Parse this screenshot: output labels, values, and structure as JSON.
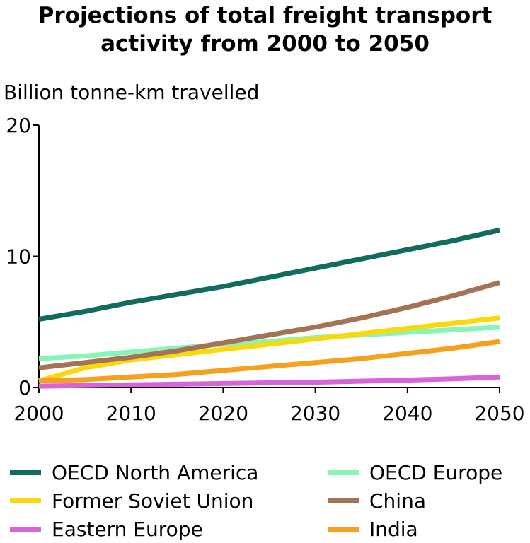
{
  "title_line1": "Projections of total freight transport",
  "title_line2": "activity from 2000 to 2050",
  "chart_data": {
    "type": "line",
    "title": "Projections of total freight transport activity from 2000 to 2050",
    "ylabel": "Billion tonne-km travelled",
    "xlabel": "",
    "xlim": [
      2000,
      2050
    ],
    "ylim": [
      0,
      20
    ],
    "x_ticks": [
      2000,
      2010,
      2020,
      2030,
      2040,
      2050
    ],
    "y_ticks": [
      0,
      10,
      20
    ],
    "grid": false,
    "legend_placement": "bottom",
    "x": [
      2000,
      2005,
      2010,
      2015,
      2020,
      2025,
      2030,
      2035,
      2040,
      2045,
      2050
    ],
    "series": [
      {
        "name": "OECD North America",
        "color": "#116b5e",
        "values": [
          5.2,
          5.8,
          6.5,
          7.1,
          7.7,
          8.4,
          9.1,
          9.8,
          10.5,
          11.2,
          12.0
        ]
      },
      {
        "name": "OECD Europe",
        "color": "#87f5b8",
        "values": [
          2.2,
          2.4,
          2.7,
          3.0,
          3.3,
          3.5,
          3.8,
          4.0,
          4.2,
          4.4,
          4.6
        ]
      },
      {
        "name": "Former Soviet Union",
        "color": "#f9d90c",
        "values": [
          0.5,
          1.5,
          2.1,
          2.5,
          2.9,
          3.3,
          3.7,
          4.1,
          4.5,
          4.9,
          5.3
        ]
      },
      {
        "name": "China",
        "color": "#a57255",
        "values": [
          1.5,
          1.9,
          2.3,
          2.8,
          3.4,
          4.0,
          4.6,
          5.3,
          6.1,
          7.0,
          8.0
        ]
      },
      {
        "name": "Eastern Europe",
        "color": "#d864d8",
        "values": [
          0.1,
          0.15,
          0.2,
          0.25,
          0.3,
          0.35,
          0.4,
          0.48,
          0.56,
          0.66,
          0.8
        ]
      },
      {
        "name": "India",
        "color": "#f6a01e",
        "values": [
          0.5,
          0.6,
          0.8,
          1.0,
          1.3,
          1.6,
          1.9,
          2.2,
          2.6,
          3.0,
          3.5
        ]
      }
    ]
  },
  "legend": [
    {
      "label": "OECD North America",
      "color": "#116b5e"
    },
    {
      "label": "OECD Europe",
      "color": "#87f5b8"
    },
    {
      "label": "Former Soviet Union",
      "color": "#f9d90c"
    },
    {
      "label": "China",
      "color": "#a57255"
    },
    {
      "label": "Eastern Europe",
      "color": "#d864d8"
    },
    {
      "label": "India",
      "color": "#f6a01e"
    }
  ]
}
